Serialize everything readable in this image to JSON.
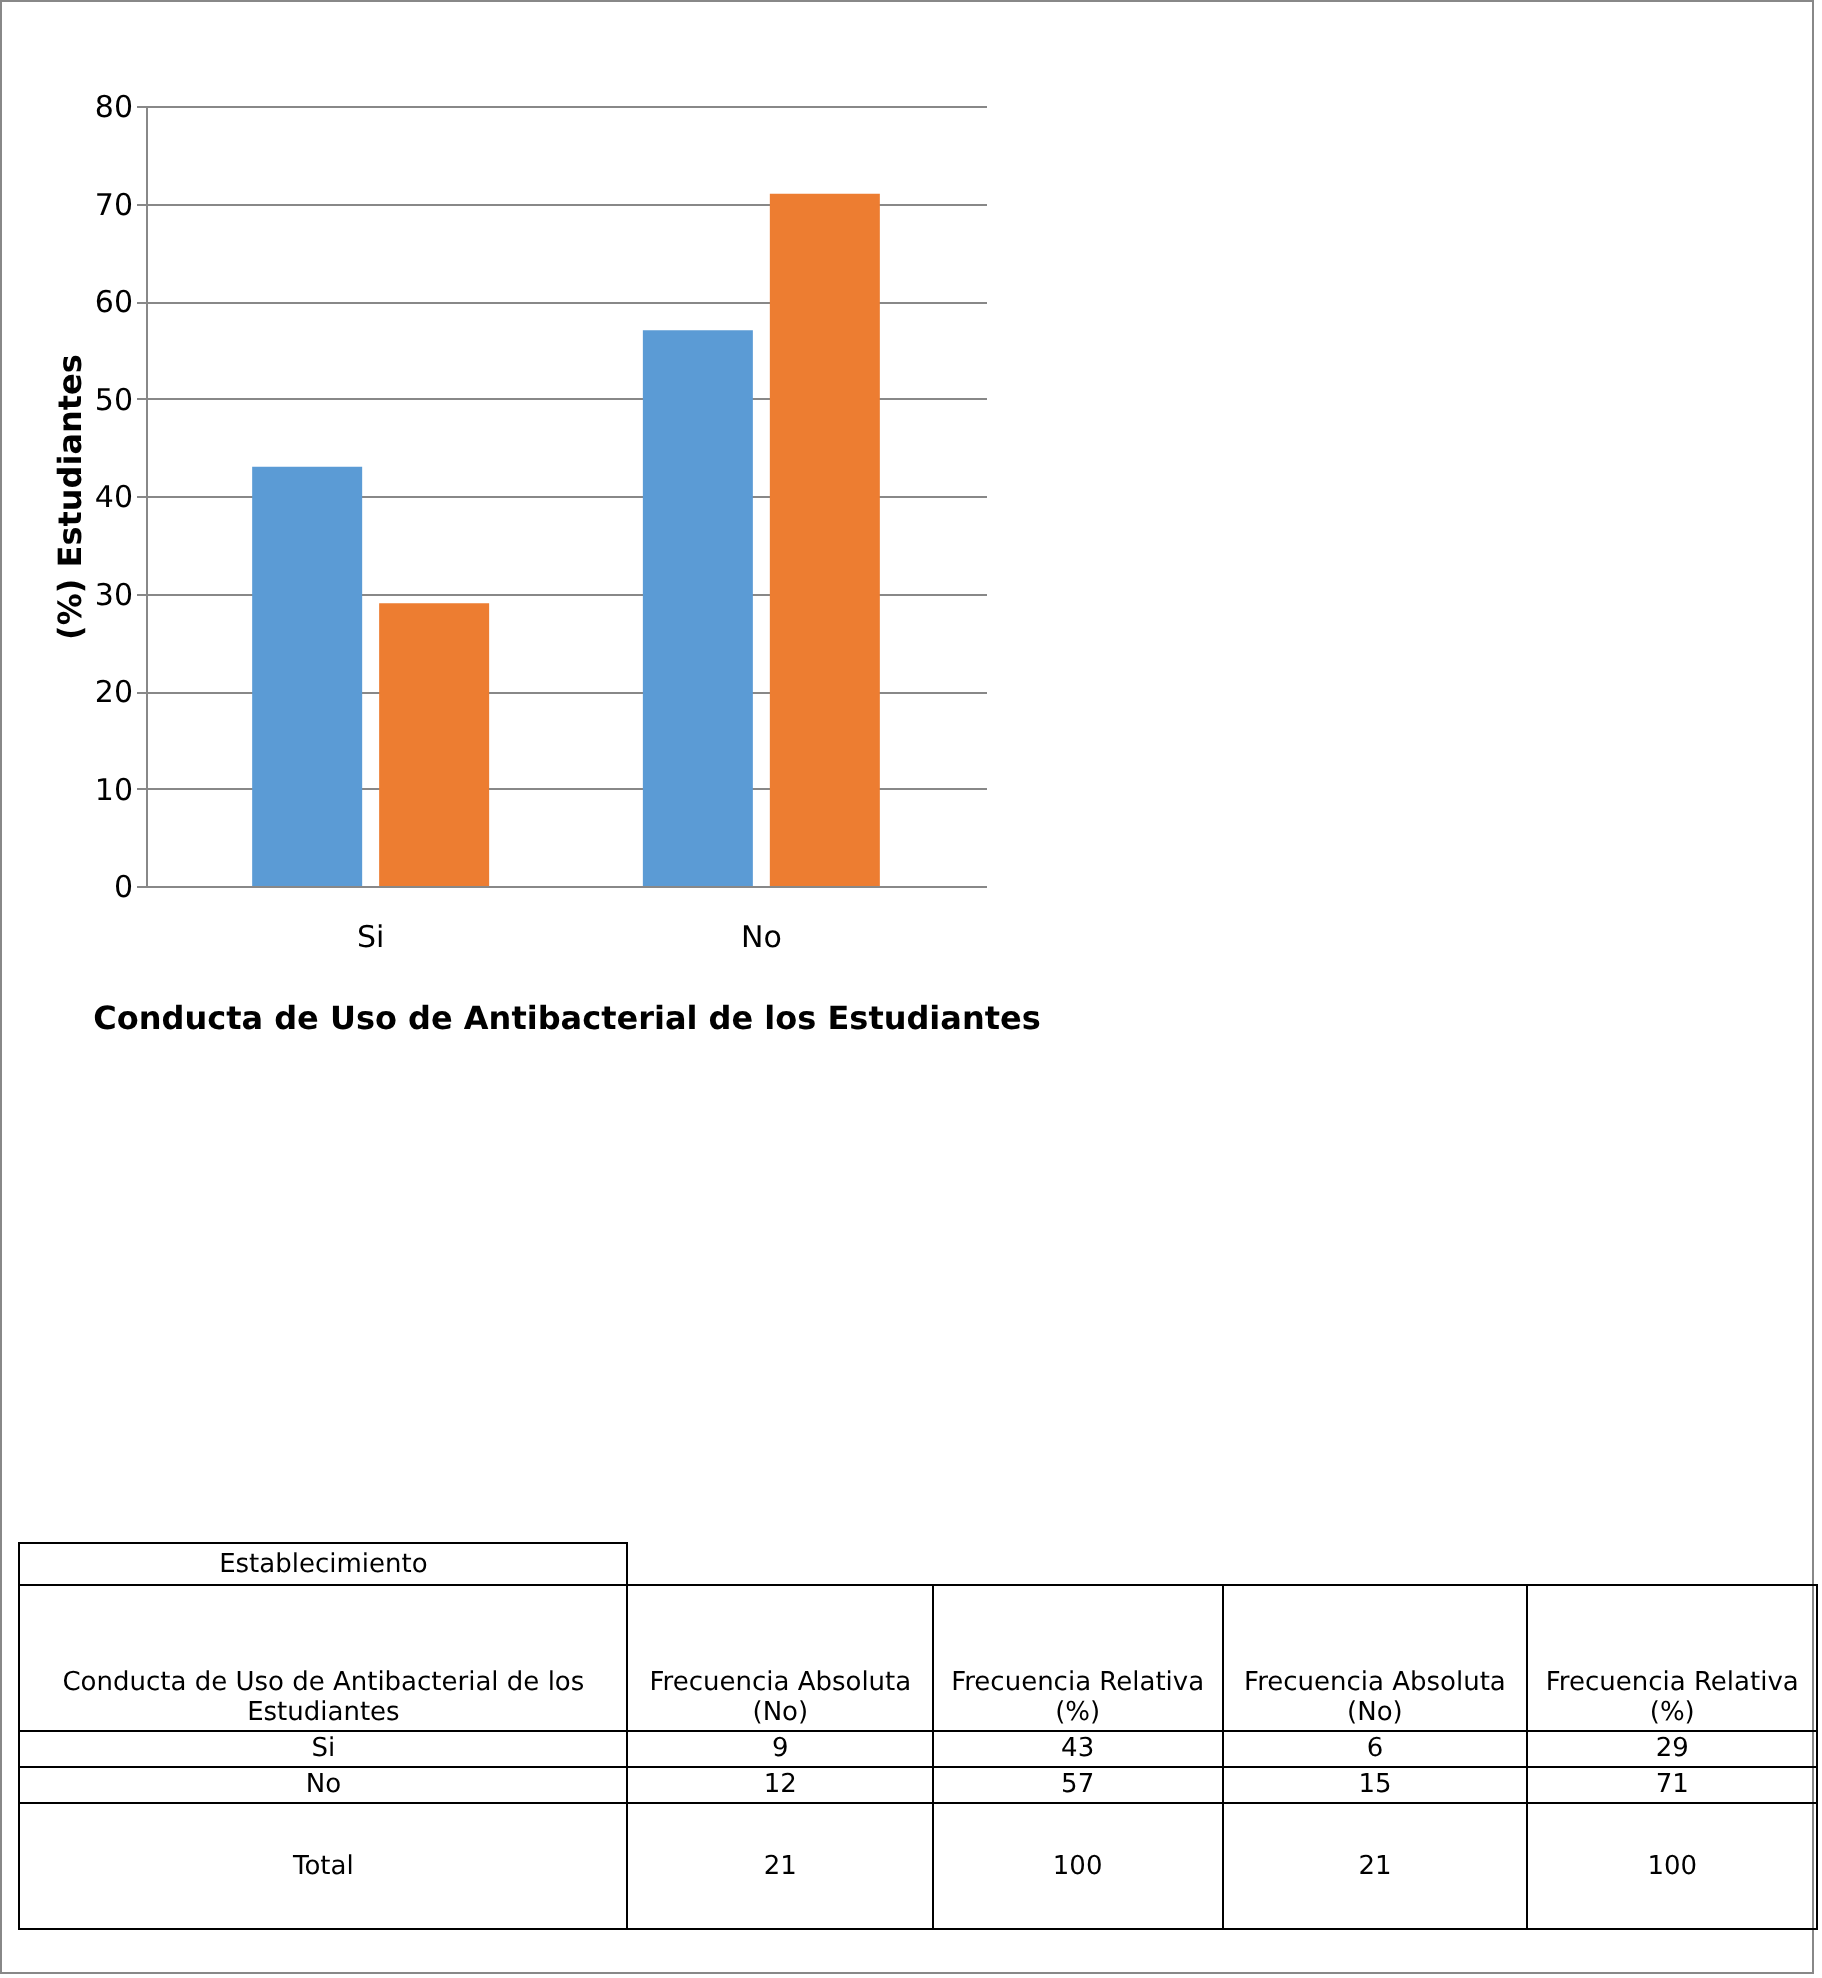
{
  "chart_data": {
    "type": "bar",
    "categories": [
      "Si",
      "No"
    ],
    "series": [
      {
        "color": "#5b9bd5",
        "values": [
          43,
          57
        ]
      },
      {
        "color": "#ed7d31",
        "values": [
          29,
          71
        ]
      }
    ],
    "xlabel": "Conducta de Uso de Antibacterial de los Estudiantes",
    "ylabel": "(%) Estudiantes",
    "ylim": [
      0,
      80
    ],
    "yticks": [
      0,
      10,
      20,
      30,
      40,
      50,
      60,
      70,
      80
    ],
    "grid": "y",
    "annotations": [
      "Establecimiento",
      "Conducta de Uso de Antibacterial de los Estudiantes",
      "Frecuencia Absoluta (No)",
      "Frecuencia Relativa (%)",
      "Frecuencia Absoluta (No)",
      "Frecuencia Relativa (%)",
      "9",
      "43",
      "6",
      "29",
      "12",
      "57",
      "15",
      "71",
      "Total",
      "21",
      "100",
      "21",
      "100"
    ]
  }
}
